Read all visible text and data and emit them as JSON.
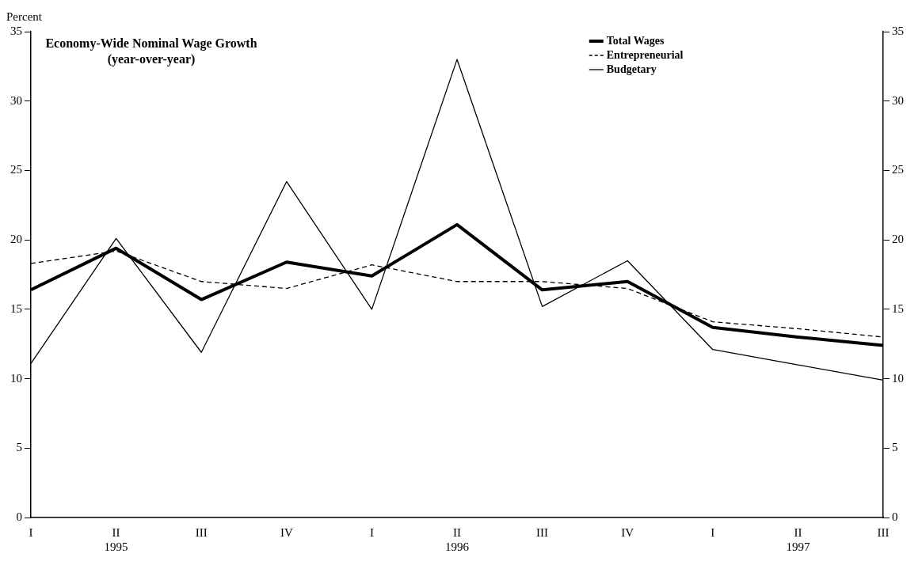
{
  "chart_data": {
    "type": "line",
    "title": "Economy-Wide Nominal Wage Growth\n(year-over-year)",
    "ylabel": "Percent",
    "categories": [
      "I",
      "II\n1995",
      "III",
      "IV",
      "I",
      "II\n1996",
      "III",
      "IV",
      "I",
      "II\n1997",
      "III"
    ],
    "series": [
      {
        "name": "Total Wages",
        "color": "#000000",
        "line_style": "solid",
        "values": [
          16.4,
          19.4,
          15.7,
          18.4,
          17.4,
          21.1,
          16.4,
          17.0,
          13.7,
          13.0,
          12.4
        ]
      },
      {
        "name": "Entrepreneurial",
        "color": "#000000",
        "line_style": "dashed",
        "values": [
          18.3,
          19.2,
          17.0,
          16.5,
          18.2,
          17.0,
          17.0,
          16.5,
          14.1,
          13.6,
          13.0
        ]
      },
      {
        "name": "Budgetary",
        "color": "#000000",
        "line_style": "solid",
        "values": [
          11.1,
          20.1,
          11.9,
          24.2,
          15.0,
          33.0,
          15.2,
          18.5,
          12.1,
          11.0,
          9.9
        ]
      }
    ],
    "ylim": [
      0,
      35
    ],
    "yticks": [
      0,
      5,
      10,
      15,
      20,
      25,
      30,
      35
    ],
    "y2lim": [
      0,
      35
    ],
    "y2ticks": [
      0,
      5,
      10,
      15,
      20,
      25,
      30,
      35
    ],
    "legend": "top right",
    "grid": false,
    "marker": "none"
  }
}
